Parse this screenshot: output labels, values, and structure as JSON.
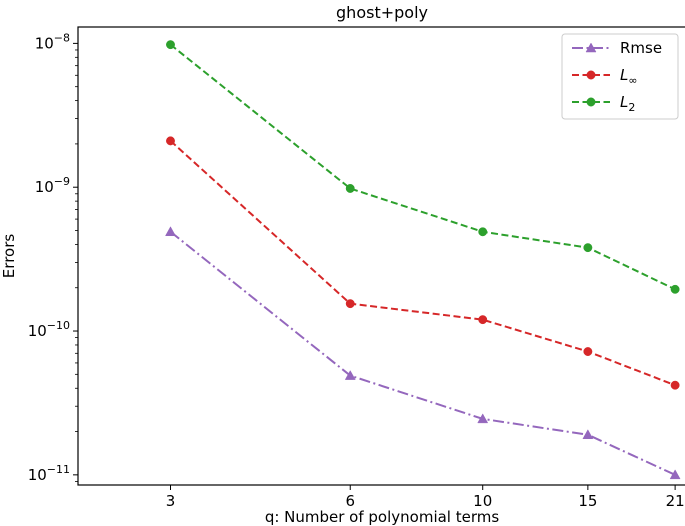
{
  "chart_data": {
    "type": "line",
    "title": "ghost+poly",
    "xlabel": "q: Number of polynomial terms",
    "ylabel": "Errors",
    "yscale": "log",
    "x": [
      3,
      6,
      10,
      15,
      21
    ],
    "xticks": [
      "3",
      "6",
      "10",
      "15",
      "21"
    ],
    "yticks": [
      {
        "value": 1e-11,
        "base": "10",
        "exp": "−11"
      },
      {
        "value": 1e-10,
        "base": "10",
        "exp": "−10"
      },
      {
        "value": 1e-09,
        "base": "10",
        "exp": "−9"
      },
      {
        "value": 1e-08,
        "base": "10",
        "exp": "−8"
      }
    ],
    "xlim": [
      2.1,
      21.9
    ],
    "ylim": [
      8.5e-12,
      1.3e-08
    ],
    "grid": false,
    "legend_position": "top-right",
    "series": [
      {
        "name": "Rmse",
        "name_sub": "",
        "color": "#9467bd",
        "marker": "triangle",
        "linestyle": "dashdot",
        "values": [
          4.9e-10,
          4.9e-11,
          2.45e-11,
          1.9e-11,
          1e-11
        ]
      },
      {
        "name": "L",
        "name_sub": "∞",
        "color": "#d62728",
        "marker": "circle",
        "linestyle": "dashed",
        "values": [
          2.1e-09,
          1.55e-10,
          1.2e-10,
          7.2e-11,
          4.2e-11
        ]
      },
      {
        "name": "L",
        "name_sub": "2",
        "color": "#2ca02c",
        "marker": "circle",
        "linestyle": "dashed",
        "values": [
          9.8e-09,
          9.8e-10,
          4.9e-10,
          3.8e-10,
          1.95e-10
        ]
      }
    ]
  }
}
